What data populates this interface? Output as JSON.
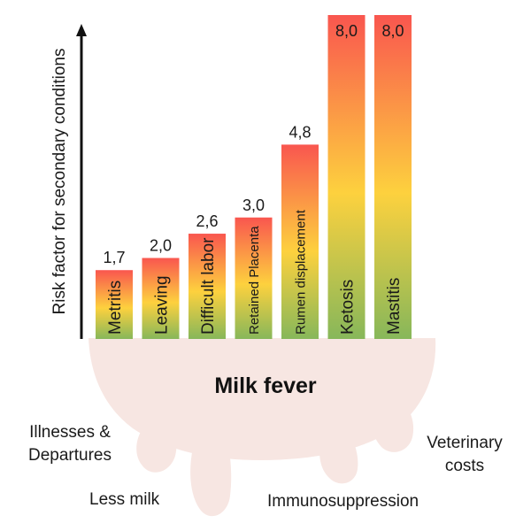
{
  "chart_data": {
    "type": "bar",
    "ylabel": "Risk factor for secondary conditions",
    "categories": [
      "Metritis",
      "Leaving",
      "Difficult labor",
      "Retained Placenta",
      "Rumen displacement",
      "Ketosis",
      "Mastitis"
    ],
    "values": [
      1.7,
      2.0,
      2.6,
      3.0,
      4.8,
      8.0,
      8.0
    ],
    "value_labels": [
      "1,7",
      "2,0",
      "2,6",
      "3,0",
      "4,8",
      "8,0",
      "8,0"
    ],
    "ylim": [
      0,
      8.0
    ],
    "grid": false,
    "legend": "none",
    "gradient_colors": {
      "top": "#f9564f",
      "middle": "#fdd13e",
      "bottom": "#87b75a"
    }
  },
  "base": {
    "title": "Milk fever",
    "color": "#f7e6e2",
    "consequences": [
      {
        "id": "illnesses",
        "text": "Illnesses & Departures"
      },
      {
        "id": "less-milk",
        "text": "Less milk"
      },
      {
        "id": "immuno",
        "text": "Immunosuppression"
      },
      {
        "id": "vet",
        "text": "Veterinary costs"
      }
    ]
  }
}
